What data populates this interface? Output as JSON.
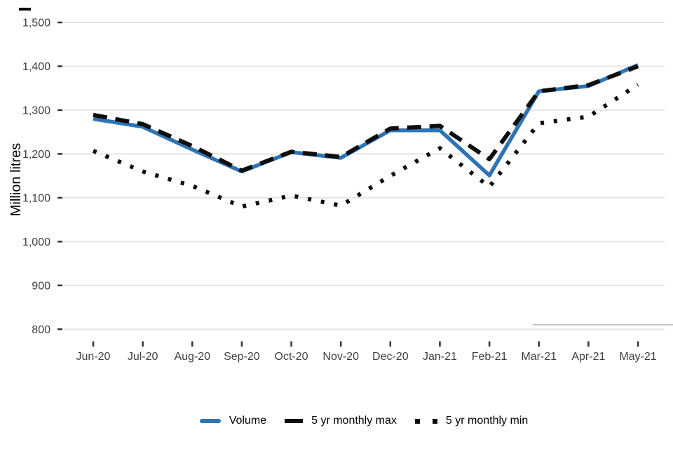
{
  "chart_data": {
    "type": "line",
    "title": "",
    "xlabel": "",
    "ylabel": "Million litres",
    "ylim": [
      800,
      1500
    ],
    "grid": "horizontal-only",
    "legend_position": "bottom-center",
    "categories": [
      "Jun-20",
      "Jul-20",
      "Aug-20",
      "Sep-20",
      "Oct-20",
      "Nov-20",
      "Dec-20",
      "Jan-21",
      "Feb-21",
      "Mar-21",
      "Apr-21",
      "May-21"
    ],
    "y_tick_values": [
      800,
      900,
      1000,
      1100,
      1200,
      1300,
      1400,
      1500
    ],
    "y_tick_labels": [
      "800",
      "900",
      "1,000",
      "1,100",
      "1,200",
      "1,300",
      "1,400",
      "1,500"
    ],
    "series": [
      {
        "name": "Volume",
        "style": "solid",
        "color": "#2e74b5",
        "values": [
          1280,
          1262,
          1210,
          1160,
          1204,
          1191,
          1254,
          1254,
          1151,
          1343,
          1355,
          1403
        ]
      },
      {
        "name": "5 yr monthly max",
        "style": "dashed",
        "color": "#0d0d0d",
        "values": [
          1289,
          1268,
          1218,
          1162,
          1205,
          1193,
          1258,
          1264,
          1188,
          1343,
          1357,
          1400
        ]
      },
      {
        "name": "5 yr monthly min",
        "style": "dotted",
        "color": "#0d0d0d",
        "values": [
          1207,
          1160,
          1127,
          1080,
          1105,
          1082,
          1150,
          1213,
          1125,
          1270,
          1285,
          1358
        ]
      }
    ],
    "colors": {
      "gridline": "#e5e5e5",
      "tick_mark": "#333333",
      "tick_label": "#404040",
      "axis_title": "#000000"
    }
  }
}
